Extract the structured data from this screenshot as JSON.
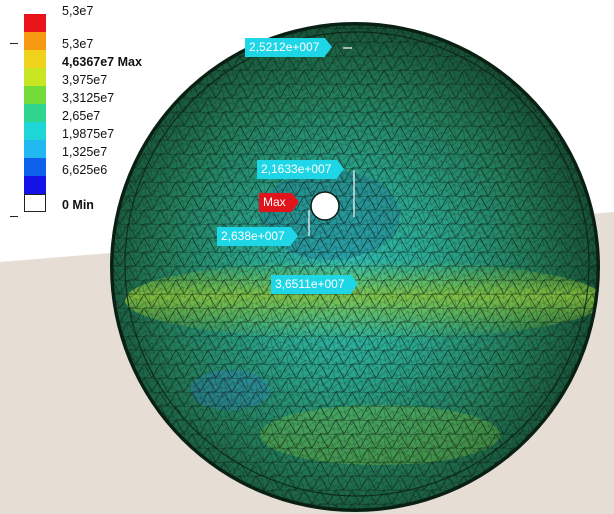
{
  "legend": {
    "entries": [
      {
        "label": "5,3e7",
        "color": "#e8141a",
        "bold": false
      },
      {
        "label": "5,3e7",
        "color": "#f59a12",
        "bold": false
      },
      {
        "label": "4,6367e7 Max",
        "color": "#f0d21c",
        "bold": true
      },
      {
        "label": "3,975e7",
        "color": "#c8e624",
        "bold": false
      },
      {
        "label": "3,3125e7",
        "color": "#74dc3a",
        "bold": false
      },
      {
        "label": "2,65e7",
        "color": "#2fd48e",
        "bold": false
      },
      {
        "label": "1,9875e7",
        "color": "#1fd6d6",
        "bold": false
      },
      {
        "label": "1,325e7",
        "color": "#22b8f0",
        "bold": false
      },
      {
        "label": "6,625e6",
        "color": "#1060ee",
        "bold": false
      },
      {
        "label": "0 Min",
        "color": "#1412e6",
        "bold": true
      }
    ]
  },
  "probes": {
    "top": "2,5212e+007",
    "center": "2,1633e+007",
    "max": "Max",
    "left": "2,638e+007",
    "lower": "3,6511e+007"
  },
  "colors": {
    "background": "#ffffff",
    "floor": "#e6ddd4",
    "sphere_dark": "#1f5a3a",
    "sphere_mid": "#2f8c62",
    "sphere_cyan": "#2fc4c0",
    "sphere_band": "#7fc23a",
    "probe": "#1fd6e6",
    "max_tag": "#e0141a"
  }
}
